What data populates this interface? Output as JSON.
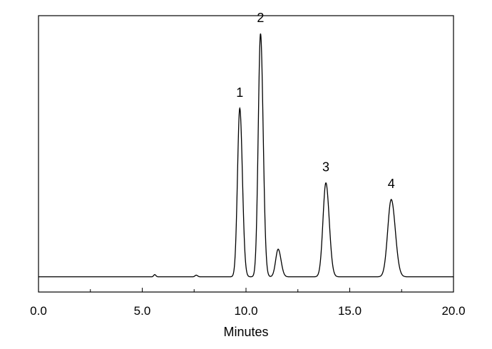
{
  "chart_data": {
    "type": "line",
    "title": "",
    "xlabel": "Minutes",
    "ylabel": "",
    "xlim": [
      0,
      20
    ],
    "ylim": [
      0,
      1
    ],
    "xticks": [
      "0.0",
      "5.0",
      "10.0",
      "15.0",
      "20.0"
    ],
    "grid": false,
    "legend": "none",
    "colors": {
      "trace": "#000000",
      "axis": "#000000",
      "background": "#ffffff"
    },
    "baseline": 0.055,
    "peaks": [
      {
        "label": "1",
        "time": 9.7,
        "height": 0.61,
        "width": 0.11
      },
      {
        "label": "2",
        "time": 10.7,
        "height": 0.88,
        "width": 0.11
      },
      {
        "label": "",
        "time": 11.55,
        "height": 0.1,
        "width": 0.12
      },
      {
        "label": "3",
        "time": 13.85,
        "height": 0.34,
        "width": 0.14
      },
      {
        "label": "4",
        "time": 17.0,
        "height": 0.28,
        "width": 0.17
      },
      {
        "label": "",
        "time": 5.6,
        "height": 0.008,
        "width": 0.05
      },
      {
        "label": "",
        "time": 7.6,
        "height": 0.006,
        "width": 0.06
      }
    ]
  }
}
